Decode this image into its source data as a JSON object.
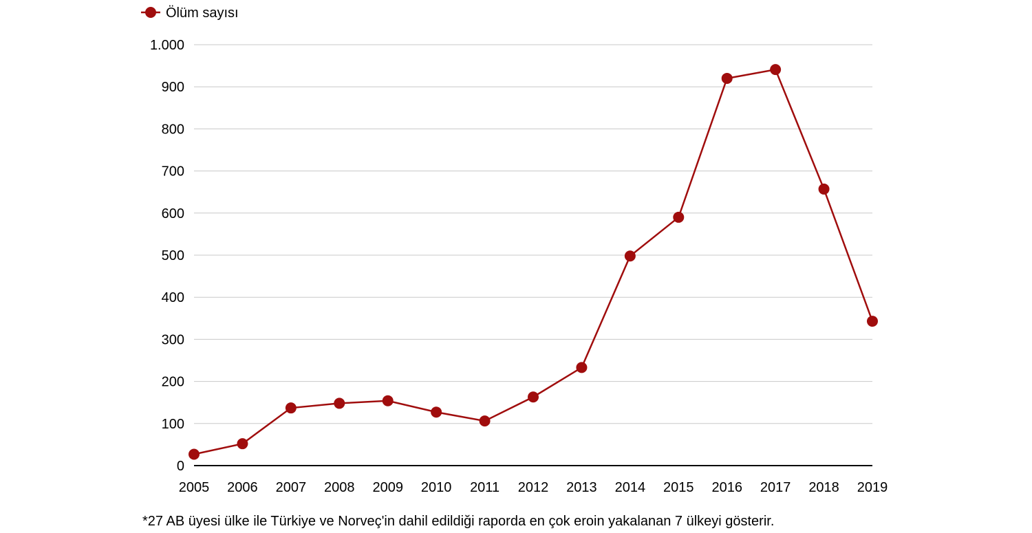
{
  "legend": {
    "series_label": "Ölüm sayısı"
  },
  "footnote": "*27 AB üyesi ülke ile Türkiye ve Norveç'in dahil edildiği raporda en çok eroin yakalanan 7 ülkeyi gösterir.",
  "colors": {
    "series": "#a00d0d",
    "grid": "#c8c8c8",
    "axis": "#000000"
  },
  "chart_data": {
    "type": "line",
    "title": "",
    "xlabel": "",
    "ylabel": "",
    "ylim": [
      0,
      1000
    ],
    "grid": true,
    "legend_position": "top-left",
    "y_ticks": [
      0,
      100,
      200,
      300,
      400,
      500,
      600,
      700,
      800,
      900,
      1000
    ],
    "y_tick_labels": [
      "0",
      "100",
      "200",
      "300",
      "400",
      "500",
      "600",
      "700",
      "800",
      "900",
      "1.000"
    ],
    "categories": [
      "2005",
      "2006",
      "2007",
      "2008",
      "2009",
      "2010",
      "2011",
      "2012",
      "2013",
      "2014",
      "2015",
      "2016",
      "2017",
      "2018",
      "2019"
    ],
    "series": [
      {
        "name": "Ölüm sayısı",
        "values": [
          27,
          52,
          137,
          148,
          154,
          127,
          106,
          163,
          233,
          498,
          590,
          920,
          941,
          657,
          343
        ]
      }
    ]
  }
}
